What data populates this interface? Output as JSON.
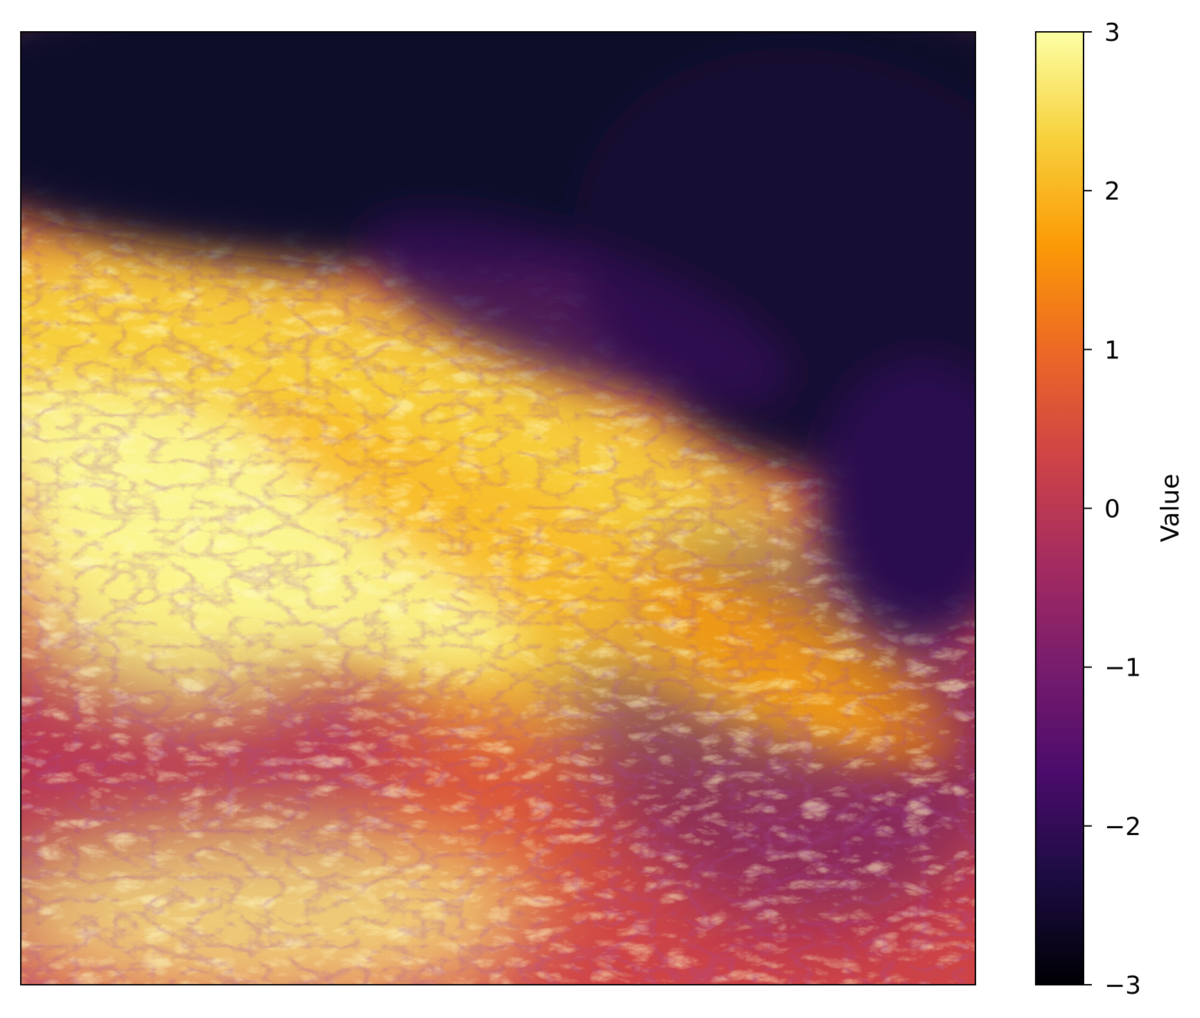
{
  "chart_data": {
    "type": "heatmap",
    "title": "",
    "xlabel": "",
    "ylabel": "",
    "x_ticks_shown": false,
    "y_ticks_shown": false,
    "grid": false,
    "colormap": "inferno",
    "colormap_stops": [
      "#000004",
      "#1b0c41",
      "#4a0c6b",
      "#781c6d",
      "#a52c60",
      "#cf4446",
      "#ed6925",
      "#fb9b06",
      "#f7d13d",
      "#fcffa4"
    ],
    "colorbar": {
      "label": "Value",
      "range": [
        -3,
        3
      ],
      "ticks": [
        3,
        2,
        1,
        0,
        -1,
        -2,
        -3
      ],
      "tick_labels": [
        "3",
        "2",
        "1",
        "0",
        "−1",
        "−2",
        "−3"
      ],
      "placement": "right"
    },
    "field_description_regions": [
      {
        "area": "top band",
        "approx_value": -2.6
      },
      {
        "area": "diagonal ridge band",
        "approx_value": 2.3
      },
      {
        "area": "left-center plateau",
        "approx_value": 2.8
      },
      {
        "area": "lower-left basin",
        "approx_value": 0.0
      },
      {
        "area": "lower-right valleys",
        "approx_value": -1.6
      }
    ]
  }
}
